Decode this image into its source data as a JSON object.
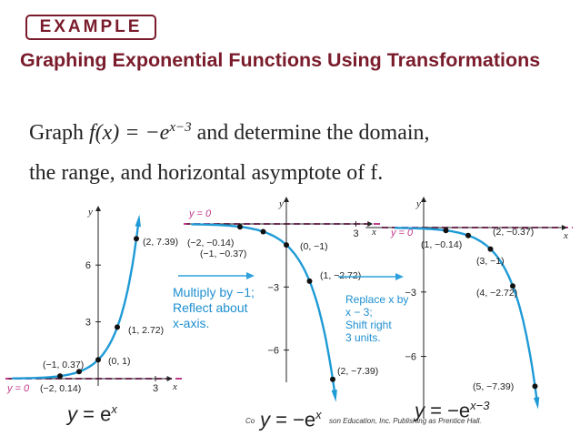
{
  "badge": "EXAMPLE",
  "heading": "Graphing Exponential Functions Using Transformations",
  "problem": {
    "line1_pre": "Graph ",
    "line1_func": "f(x) = −e",
    "line1_exp": "x−3",
    "line1_post": " and determine the domain,",
    "line2": "the range, and horizontal asymptote of f."
  },
  "graphs": [
    {
      "id": "graph-1",
      "asymptote_label": "y = 0",
      "axis_x": "x",
      "axis_y": "y",
      "y_ticks": [
        "6",
        "3"
      ],
      "x_ticks": [
        "3"
      ],
      "points": [
        {
          "label": "(2, 7.39)",
          "x": 2,
          "y": 7.39
        },
        {
          "label": "(1, 2.72)",
          "x": 1,
          "y": 2.72
        },
        {
          "label": "(0, 1)",
          "x": 0,
          "y": 1
        },
        {
          "label": "(−1, 0.37)",
          "x": -1,
          "y": 0.37
        },
        {
          "label": "(−2, 0.14)",
          "x": -2,
          "y": 0.14
        }
      ],
      "caption_lhs": "y",
      "caption_rhs": "e",
      "caption_exp": "x"
    },
    {
      "id": "graph-2",
      "asymptote_label": "y = 0",
      "axis_x": "x",
      "axis_y": "y",
      "y_ticks": [
        "−3",
        "−6"
      ],
      "x_ticks": [
        "3"
      ],
      "points": [
        {
          "label": "(−2, −0.14)",
          "x": -2,
          "y": -0.14
        },
        {
          "label": "(−1, −0.37)",
          "x": -1,
          "y": -0.37
        },
        {
          "label": "(0, −1)",
          "x": 0,
          "y": -1
        },
        {
          "label": "(1, −2.72)",
          "x": 1,
          "y": -2.72
        },
        {
          "label": "(2, −7.39)",
          "x": 2,
          "y": -7.39
        }
      ],
      "caption_lhs": "y",
      "caption_rhs": "−e",
      "caption_exp": "x"
    },
    {
      "id": "graph-3",
      "asymptote_label": "y = 0",
      "axis_x": "x",
      "axis_y": "y",
      "y_ticks": [
        "−3",
        "−6"
      ],
      "x_ticks": [],
      "points": [
        {
          "label": "(1, −0.14)",
          "x": 1,
          "y": -0.14
        },
        {
          "label": "(2, −0.37)",
          "x": 2,
          "y": -0.37
        },
        {
          "label": "(3, −1)",
          "x": 3,
          "y": -1
        },
        {
          "label": "(4, −2.72)",
          "x": 4,
          "y": -2.72
        },
        {
          "label": "(5, −7.39)",
          "x": 5,
          "y": -7.39
        }
      ],
      "caption_lhs": "y",
      "caption_rhs": "−e",
      "caption_exp": "x−3"
    }
  ],
  "transform_1": [
    "Multiply by −1;",
    "Reflect about",
    "x-axis."
  ],
  "transform_2": [
    "Replace x by",
    "x − 3;",
    "Shift right",
    "3 units."
  ],
  "copyright": "Co",
  "copyright_tail": "son Education, Inc. Publishing as Prentice Hall.",
  "colors": {
    "curve": "#1e9ad6",
    "asymptote": "#c0398a",
    "heading": "#7a1c2c",
    "arrow": "#2fa0dc"
  }
}
